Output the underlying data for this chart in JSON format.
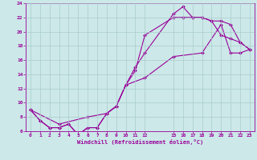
{
  "xlabel": "Windchill (Refroidissement éolien,°C)",
  "bg_color": "#cce8e8",
  "line_color": "#990099",
  "grid_color": "#aacccc",
  "xlim": [
    -0.5,
    23.5
  ],
  "ylim": [
    6,
    24
  ],
  "xticks": [
    0,
    1,
    2,
    3,
    4,
    5,
    6,
    7,
    8,
    9,
    10,
    11,
    12,
    15,
    16,
    17,
    18,
    19,
    20,
    21,
    22,
    23
  ],
  "yticks": [
    6,
    8,
    10,
    12,
    14,
    16,
    18,
    20,
    22,
    24
  ],
  "line1_x": [
    0,
    1,
    2,
    3,
    4,
    5,
    6,
    7,
    8,
    9,
    10,
    11,
    12,
    15,
    16,
    17,
    18,
    19,
    20,
    21,
    22,
    23
  ],
  "line1_y": [
    9,
    7.5,
    6.5,
    6.5,
    7,
    5.5,
    6.5,
    6.5,
    8.5,
    9.5,
    12.5,
    15,
    17,
    22.5,
    23.5,
    22,
    22,
    21.5,
    19.5,
    19,
    18.5,
    17.5
  ],
  "line2_x": [
    0,
    1,
    2,
    3,
    4,
    5,
    6,
    7,
    8,
    9,
    10,
    11,
    12,
    15,
    16,
    17,
    18,
    19,
    20,
    21,
    22,
    23
  ],
  "line2_y": [
    9,
    7.5,
    6.5,
    6.5,
    7,
    5.5,
    6.5,
    6.5,
    8.5,
    9.5,
    12.5,
    14.5,
    19.5,
    22,
    22,
    22,
    22,
    21.5,
    21.5,
    21,
    18.5,
    17.5
  ],
  "line3_x": [
    0,
    3,
    6,
    8,
    9,
    10,
    12,
    15,
    18,
    20,
    21,
    22,
    23
  ],
  "line3_y": [
    9,
    7,
    8,
    8.5,
    9.5,
    12.5,
    13.5,
    16.5,
    17,
    21,
    17,
    17,
    17.5
  ]
}
